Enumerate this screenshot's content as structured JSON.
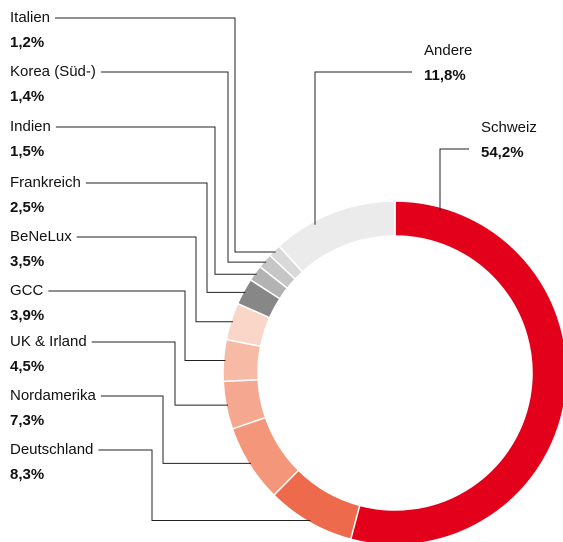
{
  "chart_data": {
    "type": "donut",
    "categories": [
      "Schweiz",
      "Deutschland",
      "Nordamerika",
      "UK & Irland",
      "GCC",
      "BeNeLux",
      "Frankreich",
      "Indien",
      "Korea (Süd-)",
      "Italien",
      "Andere"
    ],
    "values": [
      54.2,
      8.3,
      7.3,
      4.5,
      3.9,
      3.5,
      2.5,
      1.5,
      1.4,
      1.2,
      11.8
    ],
    "value_labels": [
      "54,2%",
      "8,3%",
      "7,3%",
      "4,5%",
      "3,9%",
      "3,5%",
      "2,5%",
      "1,5%",
      "1,4%",
      "1,2%",
      "11,8%"
    ],
    "colors": [
      "#e2001a",
      "#ee6a4c",
      "#f3967a",
      "#f5a88f",
      "#f7bba5",
      "#fad6c8",
      "#878787",
      "#b3b3b3",
      "#c6c6c6",
      "#d9d9d9",
      "#ebebeb"
    ]
  }
}
